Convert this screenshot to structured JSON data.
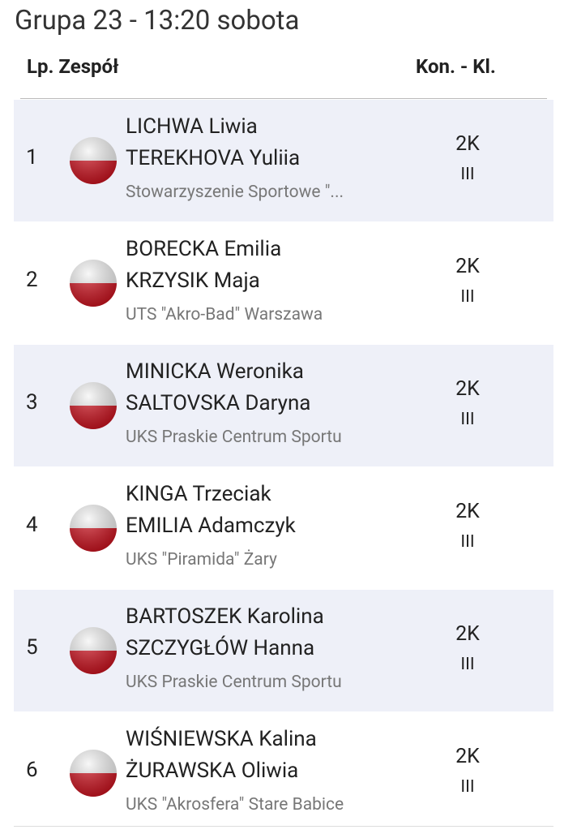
{
  "header": {
    "title": "Grupa 23 - 13:20 sobota",
    "columns": [
      "Lp. Zespół",
      "Kon. - Kl."
    ]
  },
  "table": {
    "rows": [
      {
        "number": "1",
        "names": [
          "LICHWA Liwia",
          "TEREKHOVA Yuliia"
        ],
        "club": "Stowarzyszenie Sportowe \"...",
        "category": "2K",
        "class": "III"
      },
      {
        "number": "2",
        "names": [
          "BORECKA Emilia",
          "KRZYSIK Maja"
        ],
        "club": "UTS \"Akro-Bad\" Warszawa",
        "category": "2K",
        "class": "III"
      },
      {
        "number": "3",
        "names": [
          "MINICKA Weronika",
          "SALTOVSKA Daryna"
        ],
        "club": "UKS Praskie Centrum Sportu",
        "category": "2K",
        "class": "III"
      },
      {
        "number": "4",
        "names": [
          "KINGA Trzeciak",
          "EMILIA Adamczyk"
        ],
        "club": "UKS \"Piramida\" Żary",
        "category": "2K",
        "class": "III"
      },
      {
        "number": "5",
        "names": [
          "BARTOSZEK Karolina",
          "SZCZYGŁÓW Hanna"
        ],
        "club": "UKS Praskie Centrum Sportu",
        "category": "2K",
        "class": "III"
      },
      {
        "number": "6",
        "names": [
          "WIŚNIEWSKA Kalina",
          "ŻURAWSKA Oliwia"
        ],
        "club": "UKS \"Akrosfera\" Stare Babice",
        "category": "2K",
        "class": "III"
      }
    ]
  }
}
